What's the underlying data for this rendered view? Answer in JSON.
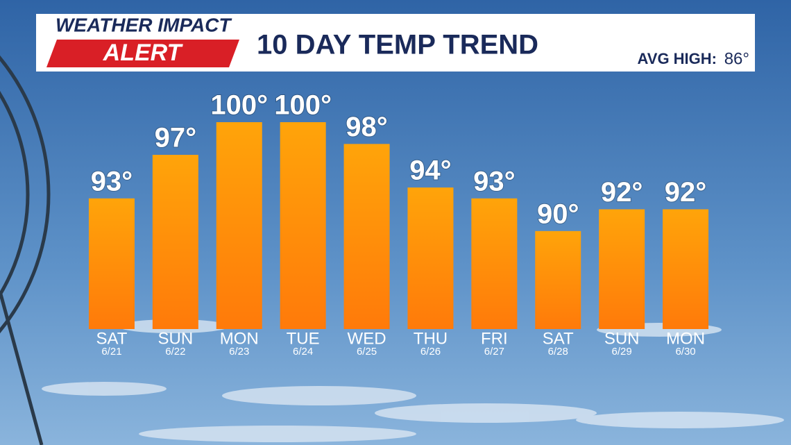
{
  "header": {
    "logo_top": "WEATHER IMPACT",
    "logo_bottom": "ALERT"
  },
  "chart_data": {
    "type": "bar",
    "title": "10 DAY TEMP TREND",
    "annotation": {
      "text": "AVG HIGH:",
      "value": 86,
      "value_label": "86°"
    },
    "categories": [
      "SAT",
      "SUN",
      "MON",
      "TUE",
      "WED",
      "THU",
      "FRI",
      "SAT",
      "SUN",
      "MON"
    ],
    "dates": [
      "6/21",
      "6/22",
      "6/23",
      "6/24",
      "6/25",
      "6/26",
      "6/27",
      "6/28",
      "6/29",
      "6/30"
    ],
    "values": [
      93,
      97,
      100,
      100,
      98,
      94,
      93,
      90,
      92,
      92
    ],
    "value_labels": [
      "93°",
      "97°",
      "100°",
      "100°",
      "98°",
      "94°",
      "93°",
      "90°",
      "92°",
      "92°"
    ],
    "color": "#ff8c00",
    "ylim": [
      81,
      100
    ]
  }
}
